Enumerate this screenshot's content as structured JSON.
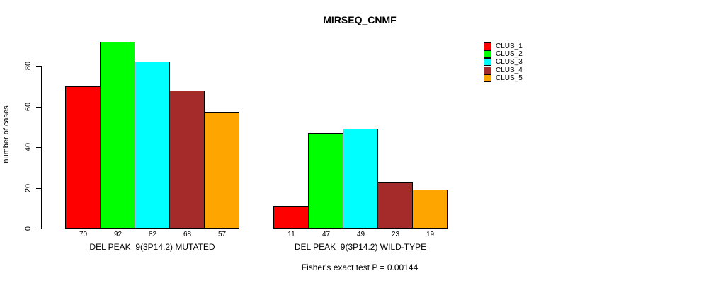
{
  "chart_data": {
    "type": "bar",
    "title": "MIRSEQ_CNMF",
    "xlabel": "",
    "ylabel": "number of cases",
    "annotation": "Fisher's exact test P = 0.00144",
    "categories": [
      "DEL PEAK  9(3P14.2) MUTATED",
      "DEL PEAK  9(3P14.2) WILD-TYPE"
    ],
    "series": [
      {
        "name": "CLUS_1",
        "color": "#FF0000",
        "values": [
          70,
          11
        ]
      },
      {
        "name": "CLUS_2",
        "color": "#00FF00",
        "values": [
          92,
          47
        ]
      },
      {
        "name": "CLUS_3",
        "color": "#00FFFF",
        "values": [
          82,
          49
        ]
      },
      {
        "name": "CLUS_4",
        "color": "#A52A2A",
        "values": [
          68,
          23
        ]
      },
      {
        "name": "CLUS_5",
        "color": "#FFA500",
        "values": [
          57,
          19
        ]
      }
    ],
    "yticks": [
      0,
      20,
      40,
      60,
      80
    ],
    "ylim": [
      0,
      92
    ],
    "grid": false,
    "bar_value_labels": true,
    "legend_position": "right",
    "background": "#ffffff",
    "axis_color": "#000000"
  }
}
